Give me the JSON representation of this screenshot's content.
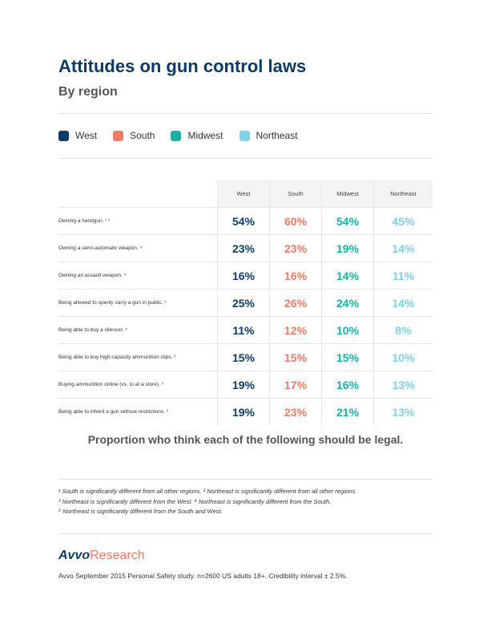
{
  "title": "Attitudes on gun control laws",
  "subtitle": "By region",
  "legend": [
    {
      "label": "West",
      "color": "#0d3a66"
    },
    {
      "label": "South",
      "color": "#f07a66"
    },
    {
      "label": "Midwest",
      "color": "#14b3a6"
    },
    {
      "label": "Northeast",
      "color": "#7fd0ea"
    }
  ],
  "chart_data": {
    "type": "table",
    "columns": [
      "West",
      "South",
      "Midwest",
      "Northeast"
    ],
    "rows": [
      {
        "label": "Owning a handgun. ¹ ²",
        "values": [
          "54%",
          "60%",
          "54%",
          "45%"
        ]
      },
      {
        "label": "Owning a semi-automatic weapon. ⁵",
        "values": [
          "23%",
          "23%",
          "19%",
          "14%"
        ]
      },
      {
        "label": "Owning an assault weapon. ³",
        "values": [
          "16%",
          "16%",
          "14%",
          "11%"
        ]
      },
      {
        "label": "Being allowed to openly carry a gun in public. ²",
        "values": [
          "25%",
          "26%",
          "24%",
          "14%"
        ]
      },
      {
        "label": "Being able to buy a silencer. ⁴",
        "values": [
          "11%",
          "12%",
          "10%",
          "8%"
        ]
      },
      {
        "label": "Being able to buy high-capacity ammunition clips. ²",
        "values": [
          "15%",
          "15%",
          "15%",
          "10%"
        ]
      },
      {
        "label": "Buying ammunition online (vs. to at a store). ³",
        "values": [
          "19%",
          "17%",
          "16%",
          "13%"
        ]
      },
      {
        "label": "Being able to inherit a gun without restrictions. ²",
        "values": [
          "19%",
          "23%",
          "21%",
          "13%"
        ]
      }
    ],
    "colors": [
      "#0d3a66",
      "#f07a66",
      "#14b3a6",
      "#7fd0ea"
    ]
  },
  "caption": "Proportion who think each of the following should be legal.",
  "footnotes": [
    "¹ South is significantly different from all other regions. ² Northeast is significantly different from all other regions.",
    "³ Northeast is significantly different from the West. ⁴ Northeast is significantly different from the South.",
    "⁵ Northeast is significantly different from the South and West."
  ],
  "brand": {
    "part1": "Avvo",
    "part2": "Research"
  },
  "source": "Avvo September 2015 Personal Safety study. n=2600 US adults 18+. Credibility interval ± 2.5%."
}
